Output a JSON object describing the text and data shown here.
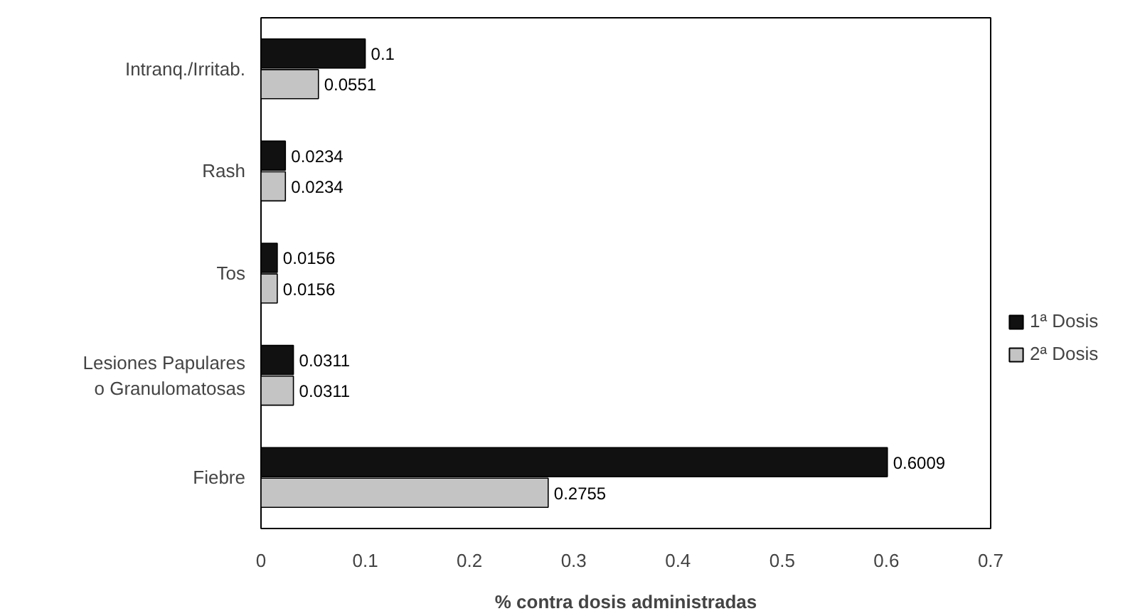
{
  "chart_data": {
    "type": "bar",
    "orientation": "horizontal",
    "xlabel": "% contra dosis administradas",
    "categories": [
      "Intranq./Irritab.",
      "Rash",
      "Tos",
      "Lesiones Papulares o Granulomatosas",
      "Fiebre"
    ],
    "series": [
      {
        "name": "1ª Dosis",
        "color": "#111111",
        "values": [
          0.1,
          0.0234,
          0.0156,
          0.0311,
          0.6009
        ]
      },
      {
        "name": "2ª Dosis",
        "color": "#c4c4c4",
        "values": [
          0.0551,
          0.0234,
          0.0156,
          0.0311,
          0.2755
        ]
      }
    ],
    "xlim": [
      0,
      0.7
    ],
    "xticks": [
      0,
      0.1,
      0.2,
      0.3,
      0.4,
      0.5,
      0.6,
      0.7
    ],
    "data_labels": true,
    "grid": false,
    "legend": "right"
  }
}
